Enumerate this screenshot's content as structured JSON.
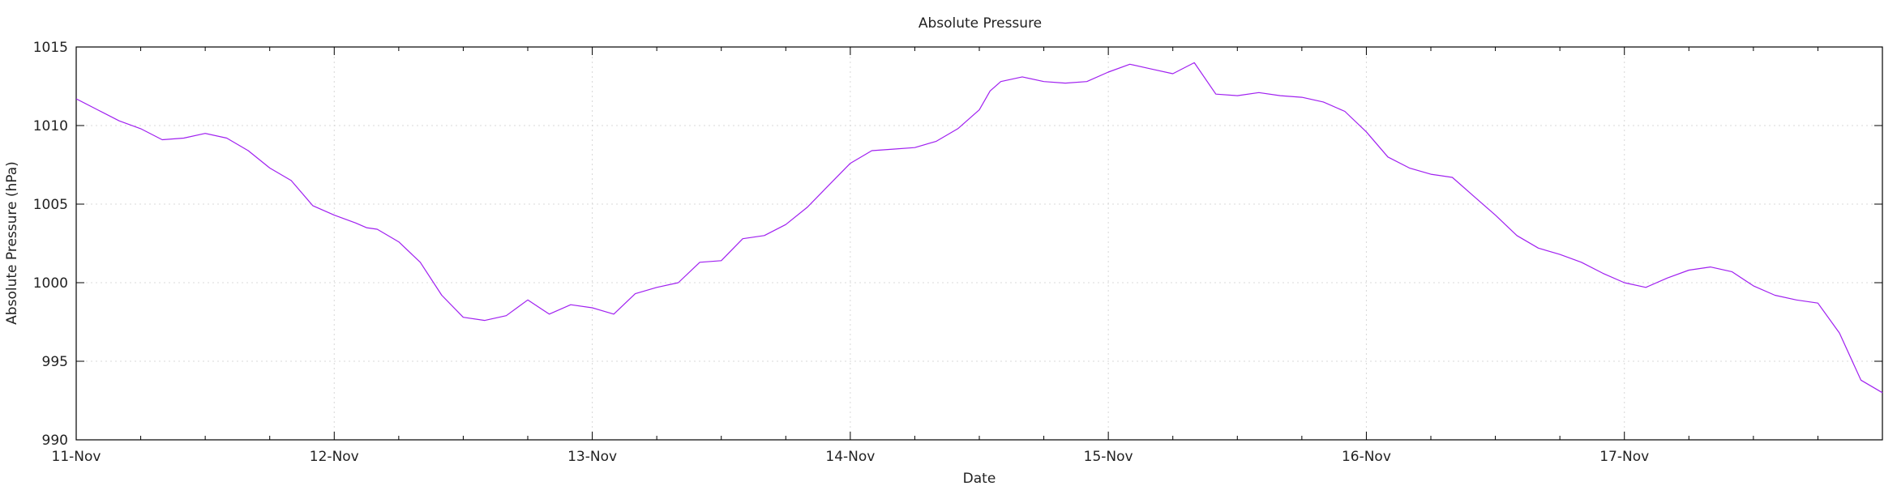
{
  "chart_data": {
    "type": "line",
    "title": "Absolute Pressure",
    "xlabel": "Date",
    "ylabel": "Absolute Pressure (hPa)",
    "ylim": [
      990,
      1015
    ],
    "yticks": [
      990,
      995,
      1000,
      1005,
      1010,
      1015
    ],
    "xlim": [
      "2023-11-11T00:00",
      "2023-11-18T00:00"
    ],
    "xtick_labels": [
      "11-Nov",
      "12-Nov",
      "13-Nov",
      "14-Nov",
      "15-Nov",
      "16-Nov",
      "17-Nov"
    ],
    "grid": true,
    "legend": "none",
    "line_color": "#a020f0",
    "series": [
      {
        "x": [
          "2023-11-11T00:00",
          "2023-11-11T02:00",
          "2023-11-11T04:00",
          "2023-11-11T06:00",
          "2023-11-11T08:00",
          "2023-11-11T10:00",
          "2023-11-11T12:00",
          "2023-11-11T14:00",
          "2023-11-11T16:00",
          "2023-11-11T18:00",
          "2023-11-11T20:00",
          "2023-11-11T22:00",
          "2023-11-12T00:00",
          "2023-11-12T02:00",
          "2023-11-12T03:00",
          "2023-11-12T04:00",
          "2023-11-12T06:00",
          "2023-11-12T08:00",
          "2023-11-12T10:00",
          "2023-11-12T12:00",
          "2023-11-12T14:00",
          "2023-11-12T16:00",
          "2023-11-12T18:00",
          "2023-11-12T20:00",
          "2023-11-12T22:00",
          "2023-11-13T00:00",
          "2023-11-13T02:00",
          "2023-11-13T04:00",
          "2023-11-13T06:00",
          "2023-11-13T08:00",
          "2023-11-13T10:00",
          "2023-11-13T12:00",
          "2023-11-13T14:00",
          "2023-11-13T16:00",
          "2023-11-13T18:00",
          "2023-11-13T20:00",
          "2023-11-13T22:00",
          "2023-11-14T00:00",
          "2023-11-14T02:00",
          "2023-11-14T04:00",
          "2023-11-14T06:00",
          "2023-11-14T08:00",
          "2023-11-14T10:00",
          "2023-11-14T12:00",
          "2023-11-14T13:00",
          "2023-11-14T14:00",
          "2023-11-14T16:00",
          "2023-11-14T18:00",
          "2023-11-14T20:00",
          "2023-11-14T22:00",
          "2023-11-15T00:00",
          "2023-11-15T02:00",
          "2023-11-15T04:00",
          "2023-11-15T06:00",
          "2023-11-15T08:00",
          "2023-11-15T10:00",
          "2023-11-15T12:00",
          "2023-11-15T14:00",
          "2023-11-15T16:00",
          "2023-11-15T18:00",
          "2023-11-15T20:00",
          "2023-11-15T22:00",
          "2023-11-16T00:00",
          "2023-11-16T02:00",
          "2023-11-16T04:00",
          "2023-11-16T06:00",
          "2023-11-16T08:00",
          "2023-11-16T10:00",
          "2023-11-16T12:00",
          "2023-11-16T14:00",
          "2023-11-16T16:00",
          "2023-11-16T18:00",
          "2023-11-16T20:00",
          "2023-11-16T22:00",
          "2023-11-17T00:00",
          "2023-11-17T02:00",
          "2023-11-17T04:00",
          "2023-11-17T06:00",
          "2023-11-17T08:00",
          "2023-11-17T10:00",
          "2023-11-17T12:00",
          "2023-11-17T14:00",
          "2023-11-17T16:00",
          "2023-11-17T18:00",
          "2023-11-17T20:00",
          "2023-11-17T22:00",
          "2023-11-18T00:00"
        ],
        "y": [
          1011.7,
          1011.0,
          1010.3,
          1009.8,
          1009.1,
          1009.2,
          1009.5,
          1009.2,
          1008.4,
          1007.3,
          1006.5,
          1004.9,
          1004.3,
          1003.8,
          1003.5,
          1003.4,
          1002.6,
          1001.3,
          999.2,
          997.8,
          997.6,
          997.9,
          998.9,
          998.0,
          998.6,
          998.4,
          998.0,
          999.3,
          999.7,
          1000.0,
          1001.3,
          1001.4,
          1002.8,
          1003.0,
          1003.7,
          1004.8,
          1006.2,
          1007.6,
          1008.4,
          1008.5,
          1008.6,
          1009.0,
          1009.8,
          1011.0,
          1012.2,
          1012.8,
          1013.1,
          1012.8,
          1012.7,
          1012.8,
          1013.4,
          1013.9,
          1013.6,
          1013.3,
          1014.0,
          1012.0,
          1011.9,
          1012.1,
          1011.9,
          1011.8,
          1011.5,
          1010.9,
          1009.6,
          1008.0,
          1007.3,
          1006.9,
          1006.7,
          1005.5,
          1004.3,
          1003.0,
          1002.2,
          1001.8,
          1001.3,
          1000.6,
          1000.0,
          999.7,
          1000.3,
          1000.8,
          1001.0,
          1000.7,
          999.8,
          999.2,
          998.9,
          998.7,
          996.8,
          993.8,
          993.0
        ]
      }
    ]
  }
}
